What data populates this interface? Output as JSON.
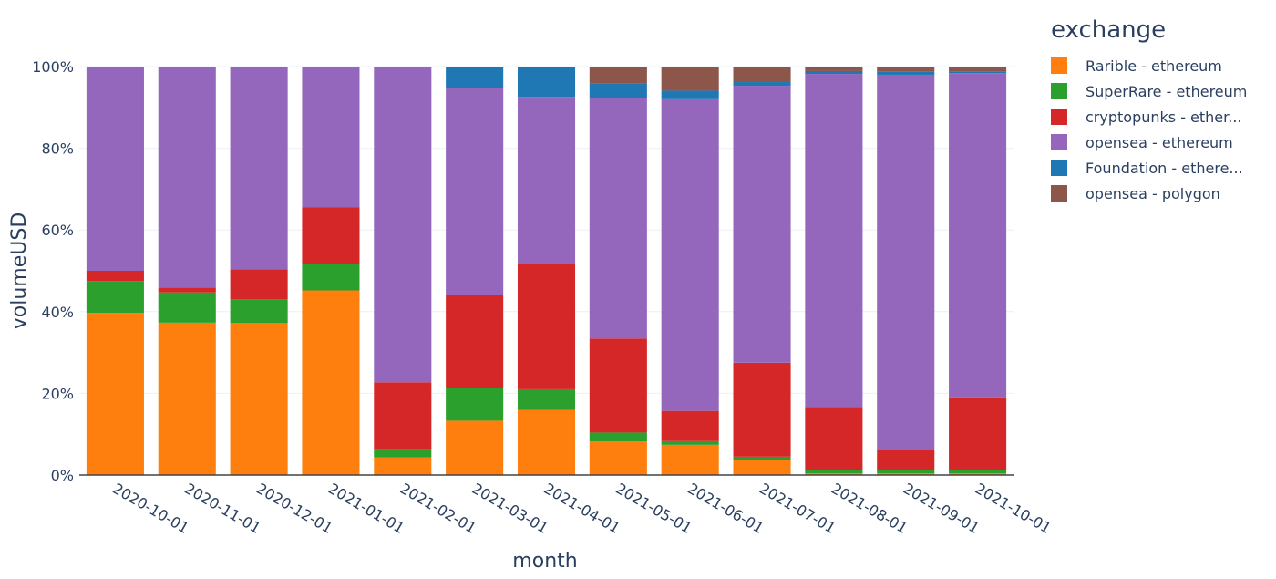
{
  "chart_data": {
    "type": "bar",
    "stacked": true,
    "normalized": "percent",
    "xlabel": "month",
    "ylabel": "volumeUSD",
    "ylim": [
      0,
      100
    ],
    "yticks": [
      "0%",
      "20%",
      "40%",
      "60%",
      "80%",
      "100%"
    ],
    "yticks_values": [
      0,
      20,
      40,
      60,
      80,
      100
    ],
    "grid": true,
    "legend_title": "exchange",
    "legend_position": "right",
    "categories": [
      "2020-10-01",
      "2020-11-01",
      "2020-12-01",
      "2021-01-01",
      "2021-02-01",
      "2021-03-01",
      "2021-04-01",
      "2021-05-01",
      "2021-06-01",
      "2021-07-01",
      "2021-08-01",
      "2021-09-01",
      "2021-10-01"
    ],
    "series": [
      {
        "name": "Rarible - ethereum",
        "legend_label": "Rarible - ethereum",
        "color": "#ff7f0e",
        "values": [
          39.7,
          37.3,
          37.2,
          45.2,
          4.3,
          13.3,
          15.9,
          8.2,
          7.4,
          3.6,
          0.4,
          0.4,
          0.4
        ]
      },
      {
        "name": "SuperRare - ethereum",
        "legend_label": "SuperRare - ethereum",
        "color": "#2ca02c",
        "values": [
          7.8,
          7.4,
          5.8,
          6.4,
          2.0,
          8.1,
          5.1,
          2.2,
          0.9,
          0.9,
          0.8,
          0.8,
          0.9
        ]
      },
      {
        "name": "cryptopunks - ethereum",
        "legend_label": "cryptopunks - ether...",
        "color": "#d62728",
        "values": [
          2.5,
          1.2,
          7.4,
          14.0,
          16.4,
          22.7,
          30.6,
          23.0,
          7.4,
          23.0,
          15.5,
          4.9,
          17.7
        ]
      },
      {
        "name": "opensea - ethereum",
        "legend_label": "opensea - ethereum",
        "color": "#9467bd",
        "values": [
          50.0,
          54.1,
          49.6,
          34.4,
          77.3,
          50.7,
          41.0,
          59.0,
          76.3,
          67.8,
          81.5,
          91.9,
          79.4
        ]
      },
      {
        "name": "Foundation - ethereum",
        "legend_label": "Foundation - ethere...",
        "color": "#1f77b4",
        "values": [
          0,
          0,
          0,
          0,
          0,
          5.2,
          7.4,
          3.5,
          2.1,
          0.9,
          0.7,
          0.7,
          0.3
        ]
      },
      {
        "name": "opensea - polygon",
        "legend_label": "opensea - polygon",
        "color": "#8c564b",
        "values": [
          0,
          0,
          0,
          0,
          0,
          0,
          0,
          4.1,
          5.9,
          3.8,
          1.1,
          1.3,
          1.3
        ]
      }
    ]
  }
}
